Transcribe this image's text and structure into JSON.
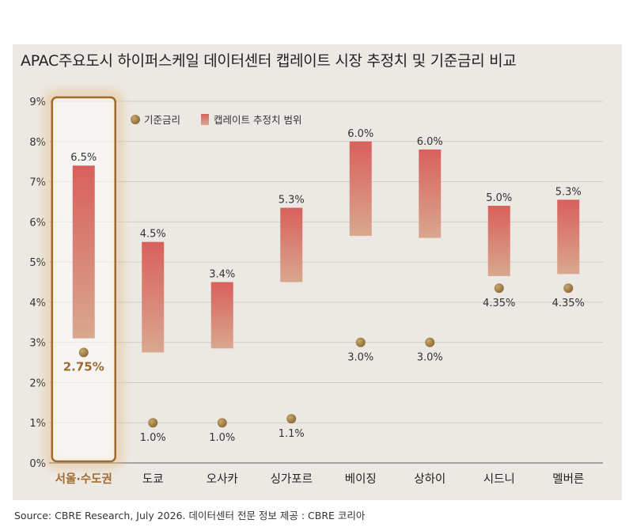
{
  "title": "APAC주요도시 하이퍼스케일 데이터센터 캡레이트 시장 추정치 및 기준금리 비교",
  "source": "Source: CBRE Research, July 2026. 데이터센터 전문 정보 제공 : CBRE 코리아",
  "colors": {
    "bar_top": "#d9605c",
    "bar_bottom": "#d9a78f",
    "dot": "#8a6a32",
    "highlight": "#a06a2a",
    "grid": "#d0ccc6"
  },
  "chart_data": {
    "type": "bar",
    "title": "APAC주요도시 하이퍼스케일 데이터센터 캡레이트 시장 추정치 및 기준금리 비교",
    "categories": [
      "서울·수도권",
      "도쿄",
      "오사카",
      "싱가포르",
      "베이징",
      "상하이",
      "시드니",
      "멜버른"
    ],
    "highlight": "서울·수도권",
    "ylim": [
      0,
      9
    ],
    "ytick_labels": [
      "0%",
      "1%",
      "2%",
      "3%",
      "4%",
      "5%",
      "6%",
      "7%",
      "8%",
      "9%"
    ],
    "grid": true,
    "legend_position": "top-left",
    "series": [
      {
        "name": "기준금리",
        "kind": "dot",
        "values": [
          2.75,
          1.0,
          1.0,
          1.1,
          3.0,
          3.0,
          4.35,
          4.35
        ],
        "labels": [
          "2.75%",
          "1.0%",
          "1.0%",
          "1.1%",
          "3.0%",
          "3.0%",
          "4.35%",
          "4.35%"
        ]
      },
      {
        "name": "캡레이트 추정치 범위",
        "kind": "range",
        "low": [
          3.1,
          2.75,
          2.85,
          4.5,
          5.65,
          5.6,
          4.65,
          4.7
        ],
        "high": [
          7.4,
          5.5,
          4.5,
          6.35,
          8.0,
          7.8,
          6.4,
          6.55
        ],
        "labels": [
          "6.5%",
          "4.5%",
          "3.4%",
          "5.3%",
          "6.0%",
          "6.0%",
          "5.0%",
          "5.3%"
        ]
      }
    ]
  }
}
